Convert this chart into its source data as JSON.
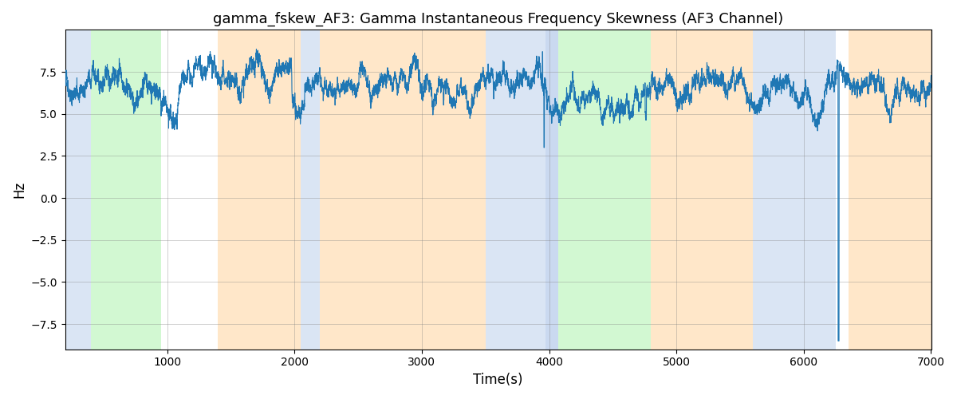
{
  "title": "gamma_fskew_AF3: Gamma Instantaneous Frequency Skewness (AF3 Channel)",
  "xlabel": "Time(s)",
  "ylabel": "Hz",
  "xlim": [
    200,
    7000
  ],
  "ylim": [
    -9,
    10
  ],
  "line_color": "#1f77b4",
  "line_width": 0.8,
  "background_regions": [
    {
      "xmin": 200,
      "xmax": 400,
      "color": "#aec6e8",
      "alpha": 0.45
    },
    {
      "xmin": 400,
      "xmax": 950,
      "color": "#90ee90",
      "alpha": 0.4
    },
    {
      "xmin": 1400,
      "xmax": 2050,
      "color": "#ffd59e",
      "alpha": 0.55
    },
    {
      "xmin": 2050,
      "xmax": 2200,
      "color": "#aec6e8",
      "alpha": 0.45
    },
    {
      "xmin": 2200,
      "xmax": 3500,
      "color": "#ffd59e",
      "alpha": 0.55
    },
    {
      "xmin": 3500,
      "xmax": 3970,
      "color": "#aec6e8",
      "alpha": 0.45
    },
    {
      "xmin": 3970,
      "xmax": 4070,
      "color": "#aec6e8",
      "alpha": 0.65
    },
    {
      "xmin": 4070,
      "xmax": 4800,
      "color": "#90ee90",
      "alpha": 0.4
    },
    {
      "xmin": 4800,
      "xmax": 5600,
      "color": "#ffd59e",
      "alpha": 0.55
    },
    {
      "xmin": 5600,
      "xmax": 6250,
      "color": "#aec6e8",
      "alpha": 0.45
    },
    {
      "xmin": 6350,
      "xmax": 7100,
      "color": "#ffd59e",
      "alpha": 0.55
    }
  ],
  "xticks": [
    1000,
    2000,
    3000,
    4000,
    5000,
    6000,
    7000
  ],
  "yticks": [
    -7.5,
    -5.0,
    -2.5,
    0.0,
    2.5,
    5.0,
    7.5
  ],
  "seed": 42,
  "t_start": 200,
  "t_end": 7000,
  "n_points": 6800
}
